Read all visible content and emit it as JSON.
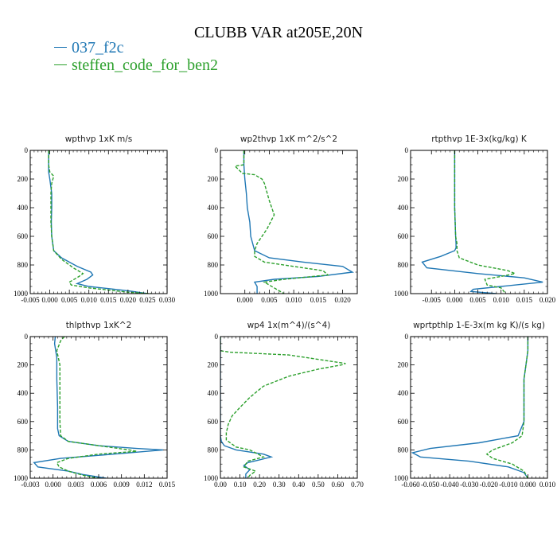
{
  "title": "CLUBB VAR at205E,20N",
  "legend": [
    {
      "name": "037_f2c",
      "color": "#1f77b4"
    },
    {
      "name": "steffen_code_for_ben2",
      "color": "#2ca02c"
    }
  ],
  "chart_data": [
    {
      "type": "line",
      "title": "wpthvp   1xK  m/s",
      "xlim": [
        -0.005,
        0.03
      ],
      "xticks": [
        -0.005,
        0.0,
        0.005,
        0.01,
        0.015,
        0.02,
        0.025,
        0.03
      ],
      "xtick_labels": [
        "-0.005",
        "0.000",
        "0.005",
        "0.010",
        "0.015",
        "0.020",
        "0.025",
        "0.030"
      ],
      "ylim": [
        0,
        1000
      ],
      "yinverted": true,
      "yticks": [
        0,
        200,
        400,
        600,
        800,
        1000
      ],
      "series": [
        {
          "name": "037_f2c",
          "x": [
            -0.0003,
            -0.0003,
            -0.0003,
            0.0,
            0.0005,
            0.0005,
            0.0004,
            0.0005,
            0.001,
            0.003,
            0.007,
            0.0105,
            0.011,
            0.0095,
            0.007,
            0.01,
            0.015,
            0.02,
            0.025
          ],
          "y": [
            0,
            100,
            150,
            200,
            300,
            400,
            500,
            600,
            700,
            750,
            810,
            850,
            870,
            900,
            930,
            950,
            965,
            980,
            1000
          ]
        },
        {
          "name": "steffen_code_for_ben2",
          "x": [
            -0.0003,
            -0.0003,
            0.0,
            0.001,
            0.0005,
            0.0003,
            0.0003,
            0.0003,
            0.0005,
            0.001,
            0.003,
            0.006,
            0.0085,
            0.0075,
            0.005,
            0.0055,
            0.01,
            0.015,
            0.02,
            0.026
          ],
          "y": [
            0,
            100,
            150,
            180,
            230,
            300,
            400,
            500,
            600,
            700,
            760,
            820,
            860,
            880,
            920,
            940,
            960,
            975,
            990,
            1000
          ]
        }
      ]
    },
    {
      "type": "line",
      "title": "wp2thvp   1xK  m^2/s^2",
      "xlim": [
        -0.005,
        0.023
      ],
      "xticks": [
        0.0,
        0.005,
        0.01,
        0.015,
        0.02
      ],
      "xtick_labels": [
        "0.000",
        "0.005",
        "0.010",
        "0.015",
        "0.020"
      ],
      "ylim": [
        0,
        1000
      ],
      "yinverted": true,
      "yticks": [
        0,
        200,
        400,
        600,
        800,
        1000
      ],
      "series": [
        {
          "name": "037_f2c",
          "x": [
            -0.0002,
            -0.0002,
            0.0,
            0.0003,
            0.0005,
            0.001,
            0.0012,
            0.002,
            0.005,
            0.012,
            0.02,
            0.022,
            0.015,
            0.006,
            0.002,
            0.0025,
            0.0025
          ],
          "y": [
            0,
            100,
            200,
            300,
            400,
            500,
            600,
            700,
            750,
            780,
            810,
            850,
            880,
            900,
            920,
            950,
            1000
          ]
        },
        {
          "name": "steffen_code_for_ben2",
          "x": [
            -0.0002,
            -0.0002,
            -0.002,
            -0.0005,
            0.002,
            0.0035,
            0.004,
            0.005,
            0.006,
            0.0045,
            0.0025,
            0.002,
            0.002,
            0.004,
            0.01,
            0.016,
            0.017,
            0.008,
            0.004,
            0.006,
            0.008
          ],
          "y": [
            0,
            100,
            110,
            160,
            170,
            200,
            230,
            350,
            450,
            550,
            650,
            700,
            740,
            780,
            810,
            840,
            870,
            900,
            920,
            960,
            1000
          ]
        }
      ]
    },
    {
      "type": "line",
      "title": "rtpthvp   1E-3x(kg/kg)  K",
      "xlim": [
        -0.0095,
        0.02
      ],
      "xticks": [
        -0.005,
        0.0,
        0.005,
        0.01,
        0.015,
        0.02
      ],
      "xtick_labels": [
        "-0.005",
        "0.000",
        "0.005",
        "0.010",
        "0.015",
        "0.020"
      ],
      "ylim": [
        0,
        1000
      ],
      "yinverted": true,
      "yticks": [
        0,
        200,
        400,
        600,
        800,
        1000
      ],
      "series": [
        {
          "name": "037_f2c",
          "x": [
            0.0,
            0.0,
            0.0,
            0.0,
            0.0002,
            0.0003,
            0.0003,
            0.0,
            -0.003,
            -0.007,
            -0.006,
            0.005,
            0.015,
            0.019,
            0.01,
            0.004,
            0.0035,
            0.009
          ],
          "y": [
            0,
            100,
            200,
            400,
            600,
            650,
            680,
            700,
            740,
            780,
            820,
            860,
            890,
            920,
            950,
            970,
            985,
            1000
          ]
        },
        {
          "name": "steffen_code_for_ben2",
          "x": [
            0.0,
            0.0,
            0.0,
            0.0,
            0.0002,
            0.0005,
            0.0005,
            0.001,
            0.005,
            0.0115,
            0.013,
            0.01,
            0.0065,
            0.007,
            0.01,
            0.011
          ],
          "y": [
            0,
            100,
            200,
            400,
            600,
            650,
            700,
            750,
            800,
            840,
            860,
            880,
            900,
            940,
            960,
            1000
          ]
        }
      ]
    },
    {
      "type": "line",
      "title": "thlpthvp   1xK^2",
      "xlim": [
        -0.003,
        0.015
      ],
      "xticks": [
        -0.003,
        0.0,
        0.003,
        0.006,
        0.009,
        0.012,
        0.015
      ],
      "xtick_labels": [
        "-0.003",
        "0.000",
        "0.003",
        "0.006",
        "0.009",
        "0.012",
        "0.015"
      ],
      "ylim": [
        0,
        1000
      ],
      "yinverted": true,
      "yticks": [
        0,
        200,
        400,
        600,
        800,
        1000
      ],
      "series": [
        {
          "name": "037_f2c",
          "x": [
            0.0003,
            0.0002,
            0.0005,
            0.0005,
            0.0006,
            0.0006,
            0.0008,
            0.002,
            0.006,
            0.011,
            0.0145,
            0.008,
            0.001,
            -0.0025,
            -0.002,
            0.002,
            0.004,
            0.007
          ],
          "y": [
            0,
            50,
            150,
            300,
            500,
            650,
            700,
            740,
            770,
            790,
            800,
            830,
            860,
            890,
            920,
            950,
            975,
            1000
          ]
        },
        {
          "name": "steffen_code_for_ben2",
          "x": [
            0.0015,
            0.001,
            0.0005,
            0.0009,
            0.0009,
            0.0009,
            0.001,
            0.002,
            0.006,
            0.01,
            0.011,
            0.006,
            0.002,
            0.0005,
            0.0008,
            0.002,
            0.004,
            0.006
          ],
          "y": [
            0,
            30,
            100,
            200,
            400,
            600,
            700,
            740,
            770,
            800,
            810,
            830,
            860,
            890,
            920,
            950,
            980,
            1000
          ]
        }
      ]
    },
    {
      "type": "line",
      "title": "wp4   1x(m^4)/(s^4)",
      "xlim": [
        0.0,
        0.7
      ],
      "xticks": [
        0.0,
        0.1,
        0.2,
        0.3,
        0.4,
        0.5,
        0.6,
        0.7
      ],
      "xtick_labels": [
        "0.00",
        "0.10",
        "0.20",
        "0.30",
        "0.40",
        "0.50",
        "0.60",
        "0.70"
      ],
      "ylim": [
        0,
        1000
      ],
      "yinverted": true,
      "yticks": [
        0,
        200,
        400,
        600,
        800,
        1000
      ],
      "series": [
        {
          "name": "037_f2c",
          "x": [
            0.0,
            0.0,
            0.0,
            0.0,
            0.0,
            0.005,
            0.02,
            0.08,
            0.22,
            0.26,
            0.2,
            0.14,
            0.12,
            0.15,
            0.13,
            0.13
          ],
          "y": [
            0,
            200,
            400,
            600,
            700,
            740,
            770,
            800,
            830,
            850,
            870,
            890,
            910,
            940,
            970,
            1000
          ]
        },
        {
          "name": "steffen_code_for_ben2",
          "x": [
            0.0,
            0.0,
            0.05,
            0.35,
            0.64,
            0.62,
            0.5,
            0.35,
            0.22,
            0.15,
            0.1,
            0.06,
            0.04,
            0.03,
            0.03,
            0.08,
            0.15,
            0.22,
            0.14,
            0.12,
            0.18,
            0.15,
            0.14
          ],
          "y": [
            0,
            100,
            110,
            130,
            190,
            200,
            230,
            280,
            350,
            430,
            500,
            560,
            620,
            680,
            730,
            780,
            800,
            850,
            880,
            920,
            950,
            980,
            1000
          ]
        }
      ]
    },
    {
      "type": "line",
      "title": "wprtpthlp   1-E-3x(m  kg  K)/(s  kg)",
      "xlim": [
        -0.06,
        0.01
      ],
      "xticks": [
        -0.06,
        -0.05,
        -0.04,
        -0.03,
        -0.02,
        -0.01,
        0.0,
        0.01
      ],
      "xtick_labels": [
        "-0.060",
        "-0.050",
        "-0.040",
        "-0.030",
        "-0.020",
        "-0.010",
        "0.000",
        "0.010"
      ],
      "ylim": [
        0,
        1000
      ],
      "yinverted": true,
      "yticks": [
        0,
        200,
        400,
        600,
        800,
        1000
      ],
      "series": [
        {
          "name": "037_f2c",
          "x": [
            0.0,
            0.0,
            -0.001,
            -0.002,
            -0.002,
            -0.002,
            -0.005,
            -0.025,
            -0.05,
            -0.059,
            -0.055,
            -0.03,
            -0.01,
            -0.002,
            0.0
          ],
          "y": [
            0,
            100,
            200,
            300,
            400,
            600,
            700,
            750,
            790,
            820,
            850,
            880,
            920,
            960,
            1000
          ]
        },
        {
          "name": "steffen_code_for_ben2",
          "x": [
            0.0,
            0.0,
            -0.001,
            -0.002,
            -0.002,
            -0.002,
            -0.003,
            -0.008,
            -0.018,
            -0.021,
            -0.018,
            -0.008,
            -0.002,
            0.0
          ],
          "y": [
            0,
            100,
            200,
            300,
            400,
            600,
            700,
            750,
            800,
            830,
            860,
            900,
            950,
            1000
          ]
        }
      ]
    }
  ]
}
